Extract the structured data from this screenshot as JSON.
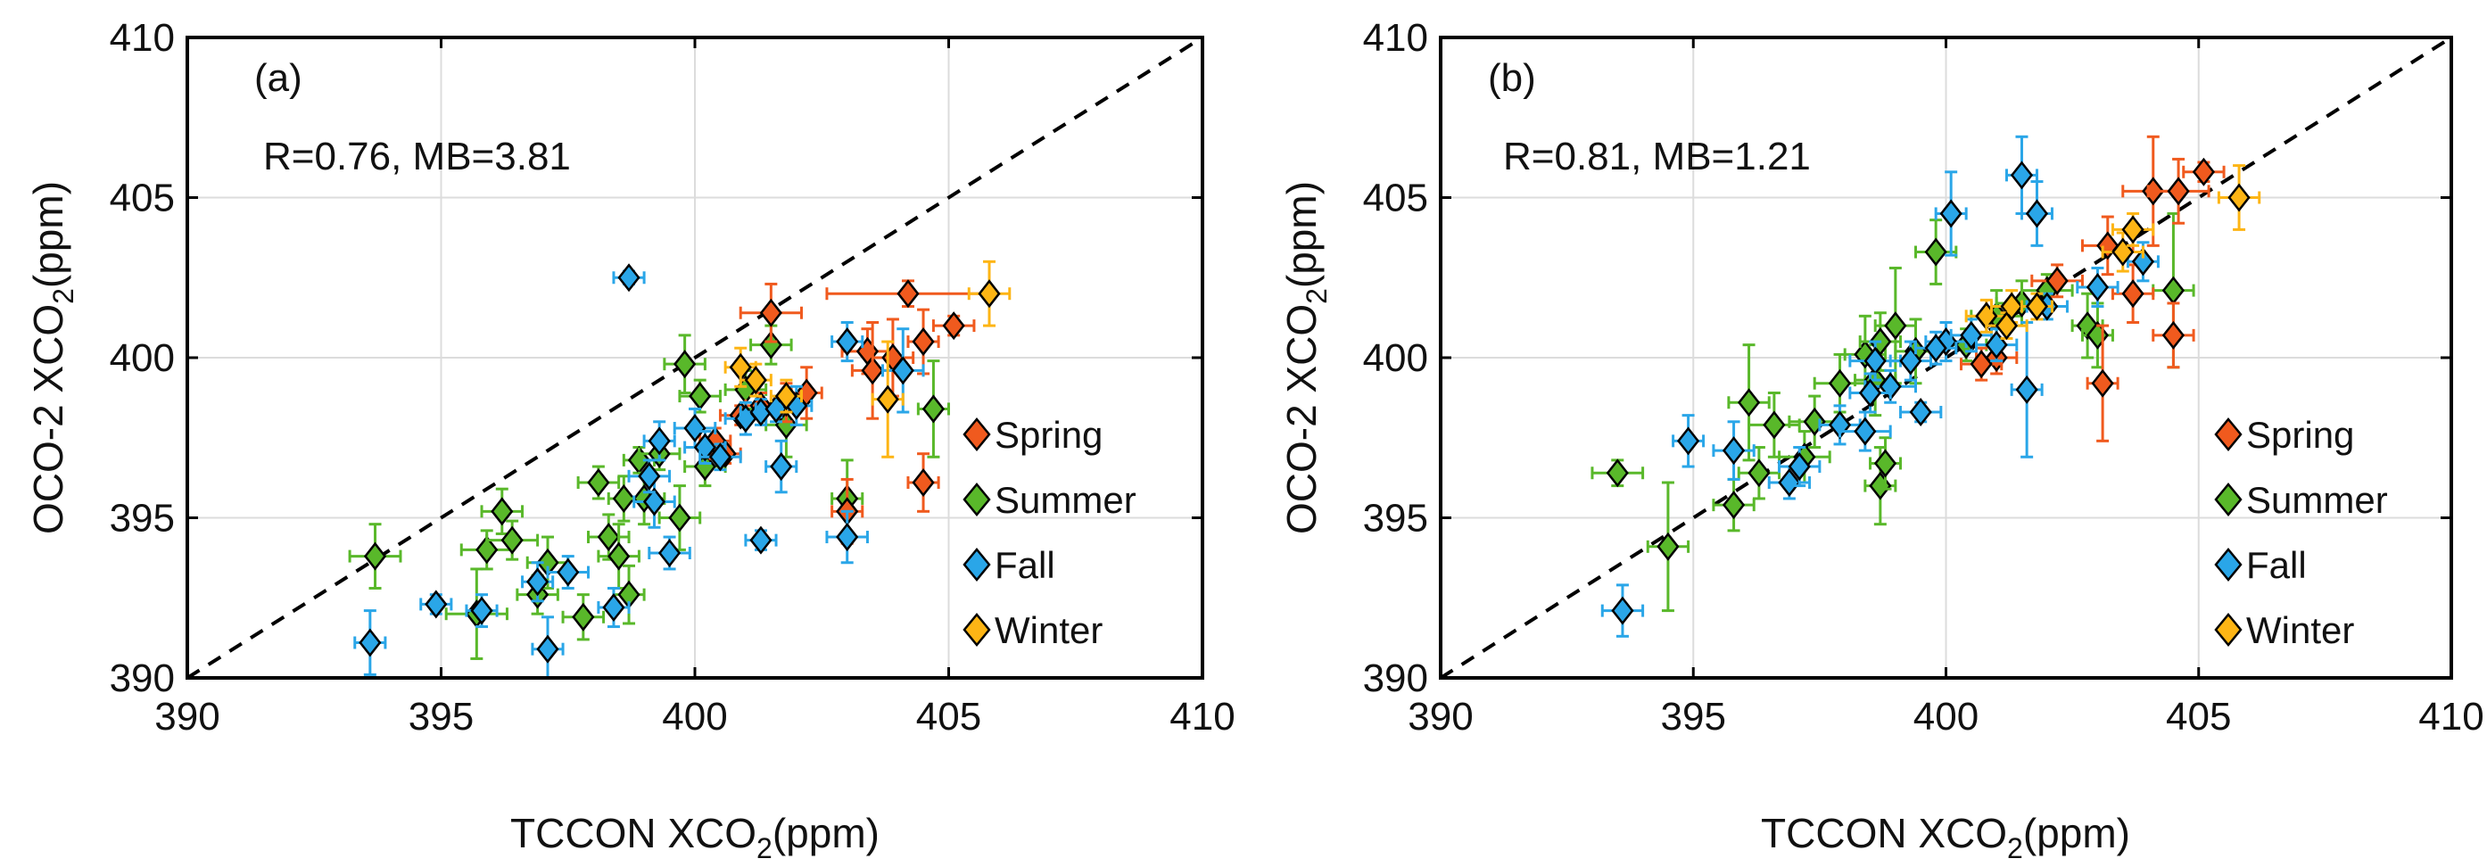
{
  "colors": {
    "Spring": "#f05a1e",
    "Summer": "#59b82a",
    "Fall": "#2aa6e8",
    "Winter": "#fdb515",
    "axis": "#000000",
    "grid": "#dcdcdc"
  },
  "chart_data": [
    {
      "type": "scatter",
      "panel": "(a)",
      "stats": "R=0.76, MB=3.81",
      "xlabel": {
        "main": "TCCON XCO",
        "sub": "2",
        "unit": "(ppm)"
      },
      "ylabel": {
        "main": "OCO-2 XCO",
        "sub": "2",
        "unit": "(ppm)"
      },
      "xlim": [
        390,
        410
      ],
      "ylim": [
        390,
        410
      ],
      "xticks": [
        "390",
        "395",
        "400",
        "405",
        "410"
      ],
      "yticks": [
        "390",
        "395",
        "400",
        "405",
        "410"
      ],
      "grid": true,
      "reference_line": "1:1 dashed",
      "legend": {
        "position": "center-right",
        "entries": [
          "Spring",
          "Summer",
          "Fall",
          "Winter"
        ]
      },
      "series": [
        {
          "name": "Spring",
          "points": [
            [
              401.5,
              401.4,
              0.6,
              0.9
            ],
            [
              402.2,
              398.9,
              0.3,
              0.8
            ],
            [
              403.4,
              400.2,
              0.5,
              0.7
            ],
            [
              404.2,
              402.0,
              1.6,
              0.4
            ],
            [
              405.1,
              401.0,
              0.4,
              0.3
            ],
            [
              404.5,
              396.1,
              0.3,
              0.9
            ],
            [
              403.5,
              399.6,
              0.4,
              1.5
            ],
            [
              403.9,
              400.0,
              0.4,
              1.2
            ],
            [
              404.5,
              400.5,
              0.3,
              1.0
            ],
            [
              401.3,
              398.5,
              0.3,
              0.4
            ],
            [
              401.8,
              398.6,
              0.3,
              0.6
            ],
            [
              400.9,
              398.2,
              0.4,
              0.3
            ],
            [
              400.4,
              397.4,
              0.3,
              0.4
            ],
            [
              400.6,
              397.0,
              0.3,
              0.3
            ],
            [
              403.0,
              395.2,
              0.3,
              1.0
            ]
          ]
        },
        {
          "name": "Summer",
          "points": [
            [
              393.7,
              393.8,
              0.5,
              1.0
            ],
            [
              395.7,
              392.0,
              0.6,
              1.4
            ],
            [
              395.9,
              394.0,
              0.5,
              0.6
            ],
            [
              396.2,
              395.2,
              0.4,
              0.7
            ],
            [
              396.4,
              394.3,
              0.5,
              0.6
            ],
            [
              396.9,
              392.6,
              0.4,
              0.6
            ],
            [
              397.1,
              393.6,
              0.4,
              0.8
            ],
            [
              397.8,
              391.9,
              0.4,
              0.7
            ],
            [
              398.1,
              396.1,
              0.4,
              0.5
            ],
            [
              398.3,
              394.4,
              0.4,
              0.7
            ],
            [
              398.5,
              393.8,
              0.4,
              1.0
            ],
            [
              398.6,
              395.6,
              0.3,
              0.7
            ],
            [
              398.7,
              392.6,
              0.3,
              0.9
            ],
            [
              398.9,
              396.8,
              0.3,
              0.4
            ],
            [
              399.3,
              397.0,
              0.4,
              0.5
            ],
            [
              399.7,
              395.0,
              0.4,
              1.0
            ],
            [
              399.8,
              399.8,
              0.4,
              0.9
            ],
            [
              400.1,
              398.8,
              0.4,
              0.5
            ],
            [
              400.2,
              396.6,
              0.4,
              0.6
            ],
            [
              401.0,
              399.0,
              0.4,
              0.6
            ],
            [
              401.5,
              400.4,
              0.4,
              0.6
            ],
            [
              401.8,
              397.9,
              0.4,
              1.0
            ],
            [
              403.0,
              395.6,
              0.3,
              1.2
            ],
            [
              404.7,
              398.4,
              0.3,
              1.5
            ],
            [
              399.0,
              395.6,
              0.4,
              0.8
            ]
          ]
        },
        {
          "name": "Fall",
          "points": [
            [
              393.6,
              391.1,
              0.3,
              1.0
            ],
            [
              394.9,
              392.3,
              0.3,
              0.3
            ],
            [
              395.8,
              392.1,
              0.3,
              0.5
            ],
            [
              396.9,
              393.0,
              0.3,
              0.6
            ],
            [
              397.1,
              390.9,
              0.3,
              1.0
            ],
            [
              397.5,
              393.3,
              0.4,
              0.5
            ],
            [
              398.4,
              392.2,
              0.3,
              0.6
            ],
            [
              398.7,
              402.5,
              0.3,
              0.2
            ],
            [
              399.2,
              395.5,
              0.4,
              0.8
            ],
            [
              399.3,
              397.4,
              0.3,
              0.6
            ],
            [
              399.5,
              393.9,
              0.4,
              0.5
            ],
            [
              400.0,
              397.8,
              0.4,
              0.6
            ],
            [
              400.2,
              397.2,
              0.4,
              0.5
            ],
            [
              400.5,
              396.9,
              0.4,
              0.4
            ],
            [
              401.0,
              398.1,
              0.4,
              0.5
            ],
            [
              401.3,
              398.3,
              0.4,
              0.4
            ],
            [
              401.6,
              398.4,
              0.4,
              0.4
            ],
            [
              401.3,
              394.3,
              0.3,
              0.3
            ],
            [
              401.7,
              396.6,
              0.3,
              0.8
            ],
            [
              402.0,
              398.5,
              0.3,
              0.6
            ],
            [
              403.0,
              400.5,
              0.3,
              0.6
            ],
            [
              403.0,
              394.4,
              0.4,
              0.8
            ],
            [
              404.1,
              399.6,
              0.4,
              1.3
            ],
            [
              399.1,
              396.3,
              0.4,
              0.5
            ]
          ]
        },
        {
          "name": "Winter",
          "points": [
            [
              400.9,
              399.7,
              0.3,
              0.6
            ],
            [
              401.2,
              399.3,
              0.3,
              0.5
            ],
            [
              403.8,
              398.7,
              0.3,
              1.8
            ],
            [
              405.8,
              402.0,
              0.4,
              1.0
            ],
            [
              401.8,
              398.8,
              0.3,
              0.5
            ]
          ]
        }
      ]
    },
    {
      "type": "scatter",
      "panel": "(b)",
      "stats": "R=0.81, MB=1.21",
      "xlabel": {
        "main": "TCCON XCO",
        "sub": "2",
        "unit": "(ppm)"
      },
      "ylabel": {
        "main": "OCO-2 XCO",
        "sub": "2",
        "unit": "(ppm)"
      },
      "xlim": [
        390,
        410
      ],
      "ylim": [
        390,
        410
      ],
      "xticks": [
        "390",
        "395",
        "400",
        "405",
        "410"
      ],
      "yticks": [
        "390",
        "395",
        "400",
        "405",
        "410"
      ],
      "grid": true,
      "reference_line": "1:1 dashed",
      "legend": {
        "position": "center-right",
        "entries": [
          "Spring",
          "Summer",
          "Fall",
          "Winter"
        ]
      },
      "series": [
        {
          "name": "Spring",
          "points": [
            [
              402.2,
              402.4,
              0.5,
              0.5
            ],
            [
              403.2,
              403.5,
              0.5,
              0.9
            ],
            [
              403.7,
              402.0,
              0.4,
              0.9
            ],
            [
              404.1,
              405.2,
              0.6,
              1.7
            ],
            [
              404.6,
              405.2,
              0.6,
              1.0
            ],
            [
              405.1,
              405.8,
              0.4,
              0.3
            ],
            [
              404.5,
              400.7,
              0.4,
              1.0
            ],
            [
              403.1,
              399.2,
              0.3,
              1.8
            ],
            [
              401.0,
              400.0,
              0.4,
              0.5
            ],
            [
              400.7,
              399.8,
              0.4,
              0.5
            ]
          ]
        },
        {
          "name": "Summer",
          "points": [
            [
              393.5,
              396.4,
              0.5,
              0.4
            ],
            [
              394.5,
              394.1,
              0.4,
              2.0
            ],
            [
              395.8,
              395.4,
              0.4,
              0.8
            ],
            [
              396.1,
              398.6,
              0.4,
              1.8
            ],
            [
              396.3,
              396.4,
              0.4,
              0.8
            ],
            [
              396.6,
              397.9,
              0.5,
              1.0
            ],
            [
              397.2,
              396.9,
              0.5,
              0.8
            ],
            [
              397.4,
              398.0,
              0.5,
              0.8
            ],
            [
              397.9,
              399.2,
              0.5,
              0.9
            ],
            [
              398.4,
              400.1,
              0.4,
              1.2
            ],
            [
              398.6,
              399.3,
              0.4,
              1.1
            ],
            [
              398.7,
              396.0,
              0.3,
              1.2
            ],
            [
              398.8,
              396.7,
              0.3,
              0.8
            ],
            [
              399.0,
              401.0,
              0.4,
              1.8
            ],
            [
              399.4,
              400.2,
              0.4,
              1.0
            ],
            [
              399.8,
              403.3,
              0.4,
              1.0
            ],
            [
              400.4,
              400.4,
              0.4,
              0.5
            ],
            [
              401.0,
              401.3,
              0.5,
              0.8
            ],
            [
              401.5,
              401.7,
              0.5,
              0.7
            ],
            [
              402.0,
              402.1,
              0.5,
              0.5
            ],
            [
              402.8,
              401.0,
              0.3,
              1.0
            ],
            [
              403.0,
              400.7,
              0.3,
              1.0
            ],
            [
              404.5,
              402.1,
              0.4,
              2.4
            ],
            [
              398.7,
              400.5,
              0.4,
              0.9
            ]
          ]
        },
        {
          "name": "Fall",
          "points": [
            [
              393.6,
              392.1,
              0.4,
              0.8
            ],
            [
              394.9,
              397.4,
              0.3,
              0.8
            ],
            [
              395.8,
              397.1,
              0.4,
              0.9
            ],
            [
              396.9,
              396.1,
              0.4,
              0.5
            ],
            [
              397.1,
              396.6,
              0.4,
              0.6
            ],
            [
              397.9,
              397.9,
              0.4,
              0.6
            ],
            [
              398.4,
              397.7,
              0.5,
              0.6
            ],
            [
              398.6,
              399.9,
              0.5,
              0.6
            ],
            [
              398.9,
              399.1,
              0.5,
              0.5
            ],
            [
              399.3,
              399.9,
              0.4,
              0.6
            ],
            [
              399.5,
              398.3,
              0.4,
              0.3
            ],
            [
              400.0,
              400.5,
              0.4,
              0.6
            ],
            [
              400.1,
              404.5,
              0.3,
              1.3
            ],
            [
              400.5,
              400.7,
              0.4,
              0.5
            ],
            [
              401.0,
              400.4,
              0.4,
              0.5
            ],
            [
              401.5,
              405.7,
              0.3,
              1.2
            ],
            [
              401.6,
              399.0,
              0.3,
              2.1
            ],
            [
              401.8,
              404.5,
              0.3,
              1.0
            ],
            [
              402.0,
              401.6,
              0.4,
              0.4
            ],
            [
              403.0,
              402.2,
              0.4,
              0.6
            ],
            [
              403.9,
              403.0,
              0.3,
              0.6
            ],
            [
              399.8,
              400.3,
              0.4,
              0.5
            ],
            [
              398.5,
              398.9,
              0.4,
              0.6
            ]
          ]
        },
        {
          "name": "Winter",
          "points": [
            [
              400.8,
              401.3,
              0.4,
              0.5
            ],
            [
              401.3,
              401.6,
              0.4,
              0.5
            ],
            [
              401.8,
              401.6,
              0.3,
              0.4
            ],
            [
              403.5,
              403.3,
              0.4,
              0.6
            ],
            [
              403.7,
              404.0,
              0.4,
              0.5
            ],
            [
              405.8,
              405.0,
              0.4,
              1.0
            ],
            [
              401.2,
              401.0,
              0.4,
              0.4
            ]
          ]
        }
      ]
    }
  ]
}
